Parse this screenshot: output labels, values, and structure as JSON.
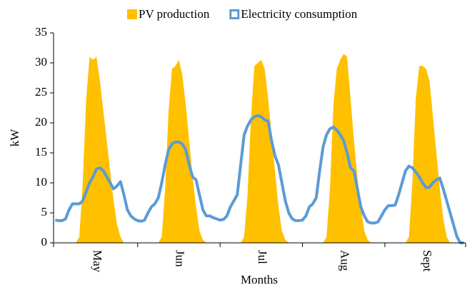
{
  "chart_data": {
    "type": "area-line",
    "legend": "top",
    "x_label": "Months",
    "y_label": "kW",
    "ylim": [
      0,
      35
    ],
    "yticks": [
      0,
      5,
      10,
      15,
      20,
      25,
      30,
      35
    ],
    "categories": [
      null,
      null,
      null,
      null,
      null,
      null,
      null,
      null,
      null,
      null,
      null,
      null,
      "May",
      null,
      null,
      null,
      null,
      null,
      null,
      null,
      null,
      null,
      null,
      null,
      null,
      null,
      null,
      null,
      null,
      null,
      null,
      null,
      null,
      null,
      null,
      null,
      "Jun",
      null,
      null,
      null,
      null,
      null,
      null,
      null,
      null,
      null,
      null,
      null,
      null,
      null,
      null,
      null,
      null,
      null,
      null,
      null,
      null,
      null,
      null,
      null,
      "Jul",
      null,
      null,
      null,
      null,
      null,
      null,
      null,
      null,
      null,
      null,
      null,
      null,
      null,
      null,
      null,
      null,
      null,
      null,
      null,
      null,
      null,
      null,
      null,
      "Aug",
      null,
      null,
      null,
      null,
      null,
      null,
      null,
      null,
      null,
      null,
      null,
      null,
      null,
      null,
      null,
      null,
      null,
      null,
      null,
      null,
      null,
      null,
      null,
      "Sept",
      null,
      null,
      null,
      null,
      null,
      null,
      null,
      null,
      null,
      null,
      null
    ],
    "series": [
      {
        "name": "PV production",
        "color": "#FFC000",
        "kind": "area",
        "values": [
          0,
          0,
          0,
          0,
          0,
          0,
          0,
          1,
          10,
          24,
          31,
          30.5,
          31,
          27,
          22,
          17,
          12,
          7,
          3,
          1,
          0,
          0,
          0,
          0,
          0,
          0,
          0,
          0,
          0,
          0,
          0,
          1,
          9,
          22,
          29,
          29.5,
          30.5,
          28,
          23,
          17,
          11,
          6,
          2,
          0.5,
          0,
          0,
          0,
          0,
          0,
          0,
          0,
          0,
          0,
          0,
          0,
          1,
          8,
          21,
          29.5,
          30,
          30.5,
          29,
          24,
          18,
          12,
          6,
          2,
          0.5,
          0,
          0,
          0,
          0,
          0,
          0,
          0,
          0,
          0,
          0,
          0,
          1,
          9,
          23,
          29,
          30.5,
          31.5,
          31,
          24,
          17,
          11,
          6,
          2,
          0.5,
          0,
          0,
          0,
          0,
          0,
          0,
          0,
          0,
          0,
          0,
          0,
          1,
          10,
          24,
          29.5,
          29.5,
          29,
          27,
          21,
          15,
          9,
          4,
          1,
          0,
          0,
          0,
          0,
          0
        ]
      },
      {
        "name": "Electricity consumption",
        "color": "#5B9BD5",
        "kind": "line",
        "values": [
          3.8,
          3.7,
          3.7,
          4,
          5.5,
          6.5,
          6.5,
          6.5,
          7,
          8.5,
          10,
          11,
          12.3,
          12.5,
          12,
          11,
          10,
          9,
          9.5,
          10.2,
          8,
          5.5,
          4.5,
          4,
          3.7,
          3.6,
          3.8,
          5,
          6,
          6.5,
          7.5,
          10,
          13,
          15.5,
          16.5,
          16.8,
          16.8,
          16.5,
          15.5,
          13,
          11,
          10.5,
          8,
          5.5,
          4.5,
          4.5,
          4.2,
          4,
          3.8,
          3.9,
          4.5,
          6,
          7,
          8,
          13,
          18,
          19.5,
          20.5,
          21,
          21.2,
          21,
          20.5,
          20.3,
          17,
          14.5,
          13,
          10,
          7,
          5,
          4,
          3.7,
          3.7,
          3.8,
          4.5,
          6,
          6.5,
          7.5,
          12,
          16,
          18,
          19,
          19.3,
          18.8,
          18,
          17,
          15,
          12.5,
          12,
          9,
          6,
          4.5,
          3.5,
          3.3,
          3.3,
          3.5,
          4.5,
          5.5,
          6.2,
          6.2,
          6.3,
          8,
          10,
          12,
          12.8,
          12.5,
          11.8,
          11,
          10,
          9.2,
          9.3,
          10,
          10.5,
          10.8,
          9,
          7,
          5,
          3,
          1,
          0,
          0
        ]
      }
    ]
  }
}
